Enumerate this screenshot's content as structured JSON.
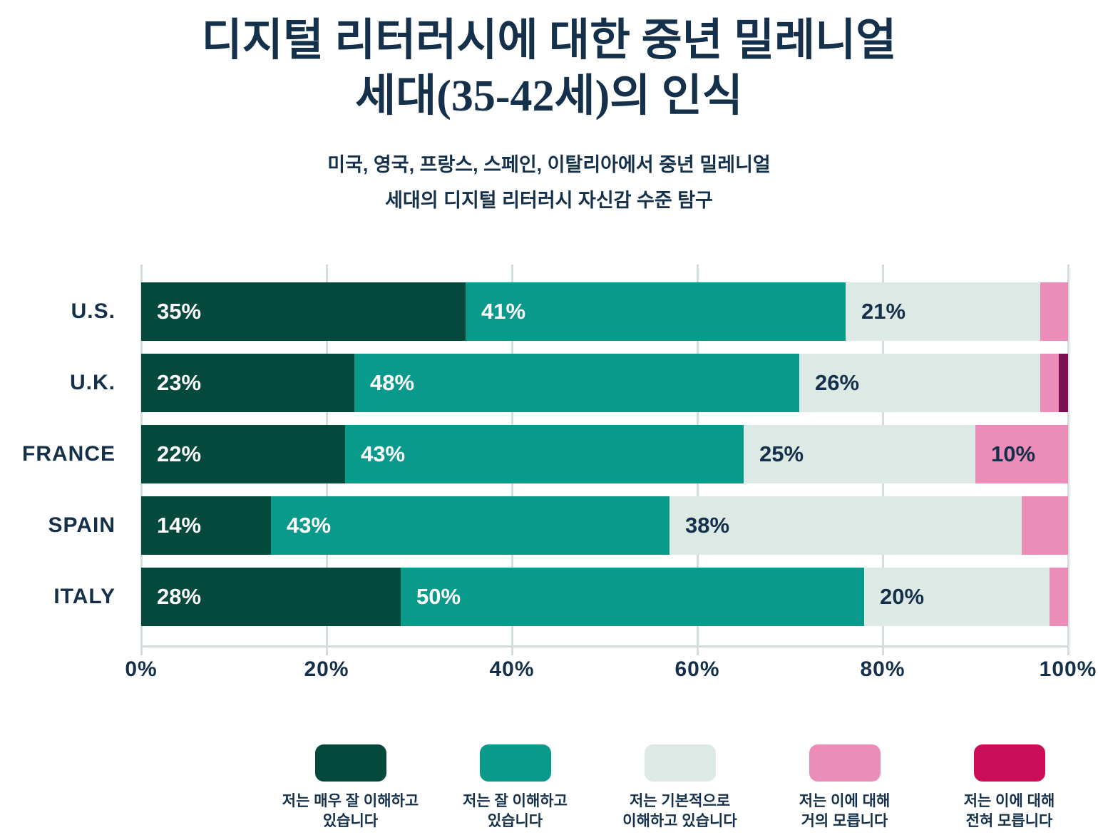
{
  "title": {
    "line1": "디지털 리터러시에 대한 중년 밀레니얼",
    "line2": "세대(35-42세)의 인식"
  },
  "subtitle": {
    "line1": "미국, 영국, 프랑스, 스페인, 이탈리아에서 중년 밀레니얼",
    "line2": "세대의 디지털 리터러시 자신감 수준 탐구"
  },
  "colors": {
    "background": "#ffffff",
    "text_navy": "#14304a",
    "gridline": "#d3ddd9",
    "very_well": "#05493d",
    "well": "#0a9a8c",
    "basic": "#dde9e5",
    "almost_nothing": "#ec8db9",
    "nothing_bar": "#7a1051",
    "nothing_legend": "#cc0e58"
  },
  "chart_data": {
    "type": "bar",
    "orientation": "horizontal",
    "stacked": true,
    "grid": true,
    "xlim": [
      0,
      100
    ],
    "x_tick_labels": [
      "0%",
      "20%",
      "40%",
      "60%",
      "80%",
      "100%"
    ],
    "label_display_min": 10,
    "label_suffix": "%",
    "categories": [
      "U.S.",
      "U.K.",
      "FRANCE",
      "SPAIN",
      "ITALY"
    ],
    "series": [
      {
        "name": "저는 매우 잘 이해하고 있습니다",
        "color": "#05493d",
        "label_color": "#ffffff",
        "values": [
          35,
          23,
          22,
          14,
          28
        ]
      },
      {
        "name": "저는 잘 이해하고 있습니다",
        "color": "#0a9a8c",
        "label_color": "#ffffff",
        "values": [
          41,
          48,
          43,
          43,
          50
        ]
      },
      {
        "name": "저는 기본적으로 이해하고 있습니다",
        "color": "#dde9e5",
        "label_color": "#14304a",
        "values": [
          21,
          26,
          25,
          38,
          20
        ]
      },
      {
        "name": "저는 이에 대해 거의 모릅니다",
        "color": "#ec8db9",
        "label_color": "#14304a",
        "values": [
          3,
          2,
          10,
          5,
          2
        ]
      },
      {
        "name": "저는 이에 대해 전혀 모릅니다",
        "color": "#7a1051",
        "label_color": "#ffffff",
        "values": [
          0,
          1,
          0,
          0,
          0
        ]
      }
    ]
  },
  "legend": {
    "items": [
      {
        "color": "#05493d",
        "line1": "저는 매우 잘 이해하고",
        "line2": "있습니다"
      },
      {
        "color": "#0a9a8c",
        "line1": "저는 잘 이해하고",
        "line2": "있습니다"
      },
      {
        "color": "#dde9e5",
        "line1": "저는 기본적으로",
        "line2": "이해하고 있습니다"
      },
      {
        "color": "#ec8db9",
        "line1": "저는 이에 대해",
        "line2": "거의 모릅니다"
      },
      {
        "color": "#cc0e58",
        "line1": "저는 이에 대해",
        "line2": "전혀 모릅니다"
      }
    ]
  }
}
